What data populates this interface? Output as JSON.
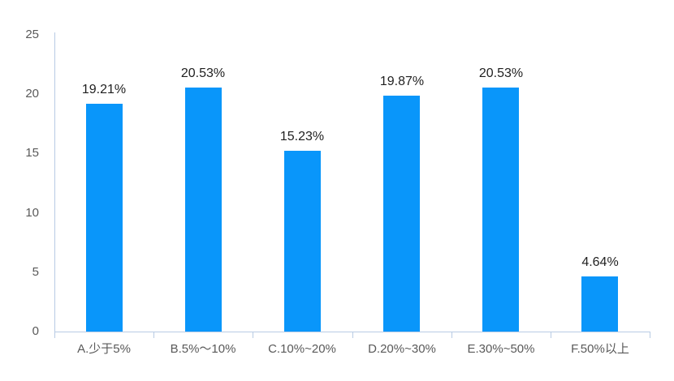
{
  "chart_data": {
    "type": "bar",
    "title": "",
    "xlabel": "",
    "ylabel": "",
    "categories": [
      "A.少于5%",
      "B.5%～10%",
      "C.10%~20%",
      "D.20%~30%",
      "E.30%~50%",
      "F.50%以上"
    ],
    "values": [
      19.21,
      20.53,
      15.23,
      19.87,
      20.53,
      4.64
    ],
    "value_labels": [
      "19.21%",
      "20.53%",
      "15.23%",
      "19.87%",
      "20.53%",
      "4.64%"
    ],
    "ylim": [
      0,
      25
    ],
    "yticks": [
      "0",
      "5",
      "10",
      "15",
      "20",
      "25"
    ],
    "grid": false,
    "legend": "none",
    "colors": {
      "bar": "#0996fa",
      "axis": "#b8cbe4",
      "value_label": "#1f1f1f",
      "tick_label": "#595959",
      "background": "#ffffff"
    }
  }
}
